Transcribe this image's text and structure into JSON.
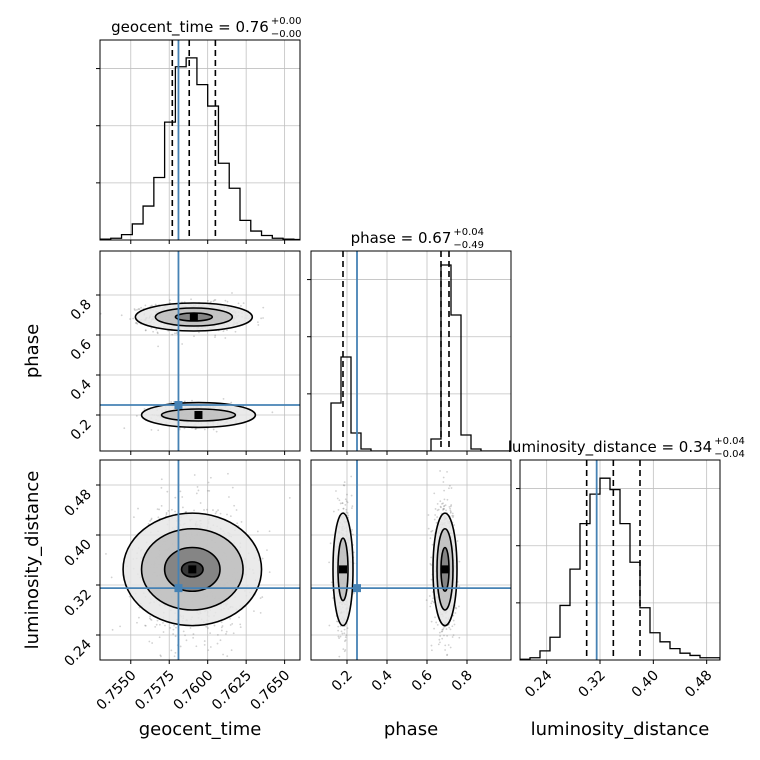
{
  "chart_data": {
    "type": "corner",
    "parameters": [
      "geocent_time",
      "phase",
      "luminosity_distance"
    ],
    "truth": {
      "geocent_time": 0.7581,
      "phase": 0.25,
      "luminosity_distance": 0.315
    },
    "colors": {
      "truth": "#4682b4",
      "hist": "#000000",
      "grid": "#c0c0c0",
      "samples": "#7a7a7a"
    },
    "diagonal": [
      {
        "param": "geocent_time",
        "title_main": "geocent_time = 0.76",
        "title_sup": "+0.00",
        "title_sub": "−0.00",
        "xlim": [
          0.753,
          0.766
        ],
        "quantiles": [
          0.7577,
          0.7588,
          0.7605
        ],
        "bin_edges": [
          0.753,
          0.7537,
          0.7544,
          0.7551,
          0.7558,
          0.7565,
          0.7572,
          0.7579,
          0.7586,
          0.7593,
          0.76,
          0.7607,
          0.7614,
          0.7621,
          0.7628,
          0.7635,
          0.7642,
          0.7649,
          0.7656,
          0.766
        ],
        "counts": [
          0.5,
          1,
          3,
          9,
          19,
          35,
          66,
          97,
          102,
          87,
          75,
          43,
          29,
          11,
          5,
          2.5,
          1,
          0.5,
          0.3
        ],
        "hist_max": 112
      },
      {
        "param": "phase",
        "title_main": "phase = 0.67",
        "title_sup": "+0.04",
        "title_sub": "−0.49",
        "xlim": [
          0.02,
          1.02
        ],
        "quantiles": [
          0.18,
          0.67,
          0.71
        ],
        "bin_edges": [
          0.02,
          0.07,
          0.12,
          0.17,
          0.22,
          0.27,
          0.32,
          0.37,
          0.42,
          0.47,
          0.52,
          0.57,
          0.62,
          0.67,
          0.72,
          0.77,
          0.82,
          0.87,
          0.92,
          0.97,
          1.02
        ],
        "counts": [
          0,
          0,
          24,
          47,
          9,
          1,
          0,
          0,
          0,
          0,
          0,
          0,
          6,
          93,
          68,
          8,
          1,
          0,
          0,
          0
        ],
        "hist_max": 100
      },
      {
        "param": "luminosity_distance",
        "title_main": "luminosity_distance = 0.34",
        "title_sup": "+0.04",
        "title_sub": "−0.04",
        "xlim": [
          0.2,
          0.5
        ],
        "quantiles": [
          0.3,
          0.34,
          0.38
        ],
        "bin_edges": [
          0.2,
          0.215,
          0.23,
          0.245,
          0.26,
          0.275,
          0.29,
          0.305,
          0.32,
          0.335,
          0.35,
          0.365,
          0.38,
          0.395,
          0.41,
          0.425,
          0.44,
          0.455,
          0.47,
          0.485,
          0.5
        ],
        "counts": [
          0.3,
          1,
          4,
          10,
          24,
          40,
          60,
          73,
          80,
          75,
          60,
          43,
          23,
          12,
          8,
          5,
          3,
          2,
          1,
          1
        ],
        "hist_max": 88
      }
    ],
    "two_d": [
      {
        "x": "geocent_time",
        "y": "phase",
        "xlim": [
          0.753,
          0.766
        ],
        "ylim": [
          0.02,
          1.02
        ],
        "modes": [
          {
            "cx": 0.7591,
            "cy": 0.69,
            "sx": 0.0012,
            "sy": 0.028,
            "n": 1000
          },
          {
            "cx": 0.7594,
            "cy": 0.2,
            "sx": 0.0012,
            "sy": 0.025,
            "n": 330
          }
        ],
        "contours": [
          {
            "cx": 0.7591,
            "cy": 0.69,
            "rx": 0.0038,
            "ry": 0.07
          },
          {
            "cx": 0.7591,
            "cy": 0.69,
            "rx": 0.0025,
            "ry": 0.045
          },
          {
            "cx": 0.7591,
            "cy": 0.69,
            "rx": 0.0012,
            "ry": 0.02
          },
          {
            "cx": 0.7594,
            "cy": 0.2,
            "rx": 0.0037,
            "ry": 0.062
          },
          {
            "cx": 0.7594,
            "cy": 0.2,
            "rx": 0.0024,
            "ry": 0.03
          }
        ]
      },
      {
        "x": "geocent_time",
        "y": "luminosity_distance",
        "xlim": [
          0.753,
          0.766
        ],
        "ylim": [
          0.2,
          0.52
        ],
        "modes": [
          {
            "cx": 0.759,
            "cy": 0.345,
            "sx": 0.0014,
            "sy": 0.042,
            "n": 1100
          }
        ],
        "contours": [
          {
            "cx": 0.759,
            "cy": 0.345,
            "rx": 0.0045,
            "ry": 0.09
          },
          {
            "cx": 0.759,
            "cy": 0.345,
            "rx": 0.0033,
            "ry": 0.065
          },
          {
            "cx": 0.759,
            "cy": 0.345,
            "rx": 0.0018,
            "ry": 0.035
          },
          {
            "cx": 0.759,
            "cy": 0.345,
            "rx": 0.0007,
            "ry": 0.012
          }
        ]
      },
      {
        "x": "phase",
        "y": "luminosity_distance",
        "xlim": [
          0.02,
          1.02
        ],
        "ylim": [
          0.2,
          0.52
        ],
        "modes": [
          {
            "cx": 0.18,
            "cy": 0.345,
            "sx": 0.018,
            "sy": 0.042,
            "n": 420
          },
          {
            "cx": 0.69,
            "cy": 0.345,
            "sx": 0.022,
            "sy": 0.042,
            "n": 650
          }
        ],
        "contours": [
          {
            "cx": 0.18,
            "cy": 0.345,
            "rx": 0.05,
            "ry": 0.09
          },
          {
            "cx": 0.18,
            "cy": 0.345,
            "rx": 0.025,
            "ry": 0.05
          },
          {
            "cx": 0.69,
            "cy": 0.345,
            "rx": 0.06,
            "ry": 0.09
          },
          {
            "cx": 0.69,
            "cy": 0.345,
            "rx": 0.04,
            "ry": 0.065
          },
          {
            "cx": 0.69,
            "cy": 0.345,
            "rx": 0.02,
            "ry": 0.035
          }
        ]
      }
    ],
    "ticks": {
      "geocent_time": {
        "values": [
          0.755,
          0.7575,
          0.76,
          0.7625,
          0.765
        ],
        "labels": [
          "0.7550",
          "0.7575",
          "0.7600",
          "0.7625",
          "0.7650"
        ]
      },
      "phase": {
        "values": [
          0.2,
          0.4,
          0.6,
          0.8
        ],
        "labels": [
          "0.2",
          "0.4",
          "0.6",
          "0.8"
        ]
      },
      "luminosity_distance": {
        "values": [
          0.24,
          0.32,
          0.4,
          0.48
        ],
        "labels": [
          "0.24",
          "0.32",
          "0.40",
          "0.48"
        ]
      }
    },
    "axis_labels": {
      "geocent_time": "geocent_time",
      "phase": "phase",
      "luminosity_distance": "luminosity_distance"
    }
  }
}
